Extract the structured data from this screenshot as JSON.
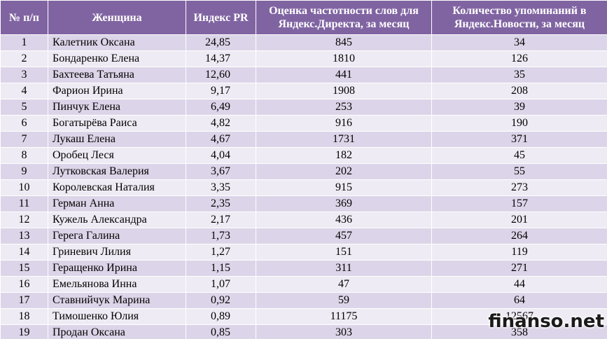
{
  "table": {
    "headers": {
      "num": "№ п/п",
      "name": "Женщина",
      "pr": "Индекс PR",
      "freq": "Оценка частотности слов для\nЯндекс.Директа, за месяц",
      "news": "Количество упоминаний в\nЯндекс.Новости, за месяц"
    },
    "rows": [
      {
        "num": "1",
        "name": "Калетник Оксана",
        "pr": "24,85",
        "freq": "845",
        "news": "34"
      },
      {
        "num": "2",
        "name": "Бондаренко Елена",
        "pr": "14,37",
        "freq": "1810",
        "news": "126"
      },
      {
        "num": "3",
        "name": "Бахтеева Татьяна",
        "pr": "12,60",
        "freq": "441",
        "news": "35"
      },
      {
        "num": "4",
        "name": "Фарион Ирина",
        "pr": "9,17",
        "freq": "1908",
        "news": "208"
      },
      {
        "num": "5",
        "name": "Пинчук Елена",
        "pr": "6,49",
        "freq": "253",
        "news": "39"
      },
      {
        "num": "6",
        "name": "Богатырёва Раиса",
        "pr": "4,82",
        "freq": "916",
        "news": "190"
      },
      {
        "num": "7",
        "name": "Лукаш Елена",
        "pr": "4,67",
        "freq": "1731",
        "news": "371"
      },
      {
        "num": "8",
        "name": "Оробец Леся",
        "pr": "4,04",
        "freq": "182",
        "news": "45"
      },
      {
        "num": "9",
        "name": "Лутковская Валерия",
        "pr": "3,67",
        "freq": "202",
        "news": "55"
      },
      {
        "num": "10",
        "name": "Королевская Наталия",
        "pr": "3,35",
        "freq": "915",
        "news": "273"
      },
      {
        "num": "11",
        "name": "Герман Анна",
        "pr": "2,35",
        "freq": "369",
        "news": "157"
      },
      {
        "num": "12",
        "name": "Кужель Александра",
        "pr": "2,17",
        "freq": "436",
        "news": "201"
      },
      {
        "num": "13",
        "name": "Герега Галина",
        "pr": "1,73",
        "freq": "457",
        "news": "264"
      },
      {
        "num": "14",
        "name": "Гриневич Лилия",
        "pr": "1,27",
        "freq": "151",
        "news": "119"
      },
      {
        "num": "15",
        "name": "Геращенко Ирина",
        "pr": "1,15",
        "freq": "311",
        "news": "271"
      },
      {
        "num": "16",
        "name": "Емельянова Инна",
        "pr": "1,07",
        "freq": "47",
        "news": "44"
      },
      {
        "num": "17",
        "name": "Ставнийчук Марина",
        "pr": "0,92",
        "freq": "59",
        "news": "64"
      },
      {
        "num": "18",
        "name": "Тимошенко Юлия",
        "pr": "0,89",
        "freq": "11175",
        "news": "12567"
      },
      {
        "num": "19",
        "name": "Продан Оксана",
        "pr": "0,85",
        "freq": "303",
        "news": "358"
      }
    ]
  },
  "watermark": "finanso.net",
  "colors": {
    "header_bg": "#8064a2",
    "row_odd": "#dcd4e8",
    "row_even": "#efebf4"
  }
}
